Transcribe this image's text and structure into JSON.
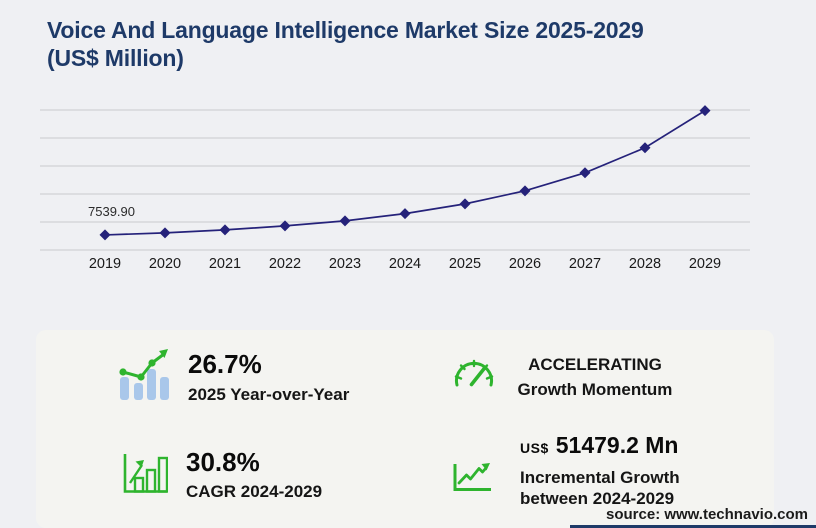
{
  "title": {
    "line1": "Voice And Language Intelligence Market Size 2025-2029",
    "line2": "(US$ Million)"
  },
  "chart_data": {
    "type": "line",
    "title": "Voice And Language Intelligence Market Size 2025-2029 (US$ Million)",
    "x": [
      "2019",
      "2020",
      "2021",
      "2022",
      "2023",
      "2024",
      "2025",
      "2026",
      "2027",
      "2028",
      "2029"
    ],
    "series": [
      {
        "name": "Market size (US$ Million)",
        "values": [
          7539.9,
          8550,
          10050,
          12050,
          14550,
          18200,
          23060,
          29580,
          38600,
          51130,
          69680
        ]
      }
    ],
    "first_point_label": "7539.90",
    "xlabel": "",
    "ylabel": "",
    "ylim": [
      0,
      70000
    ],
    "grid_interval": 14000,
    "grid": "horizontal-only",
    "legend": false,
    "marker": "diamond"
  },
  "stats": [
    {
      "icon": "bar-chart-trend-icon",
      "value": "26.7%",
      "label": "2025 Year-over-Year"
    },
    {
      "icon": "speedometer-icon",
      "line1": "ACCELERATING",
      "line2": "Growth Momentum"
    },
    {
      "icon": "bar-chart-growth-icon",
      "value": "30.8%",
      "label": "CAGR 2024-2029"
    },
    {
      "icon": "growth-line-icon",
      "value_prefix": "US$",
      "value": "51479.2 Mn",
      "label_lines": [
        "Incremental Growth",
        "between 2024-2029"
      ]
    }
  ],
  "source": "source: www.technavio.com",
  "colors": {
    "background": "#eff0f3",
    "panel": "#f4f4f1",
    "navy": "#1e3a68",
    "chart_line": "#25227a",
    "gridline": "#c9cacc",
    "axis_label": "#1a1a1a",
    "point_label": "#2b2b2b",
    "green": "#2eb42e",
    "bar_blue": "#a9c7ea"
  }
}
